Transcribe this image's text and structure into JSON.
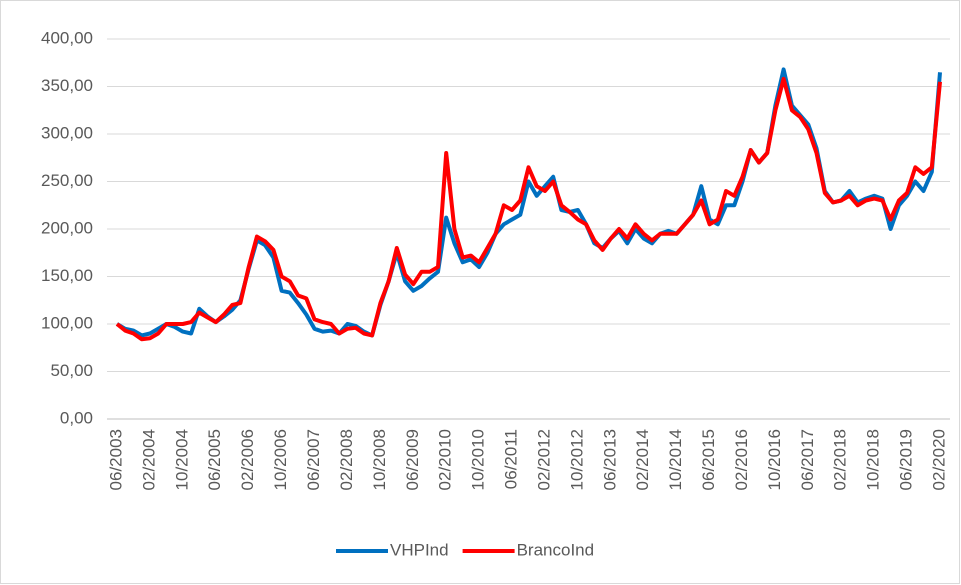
{
  "chart_data": {
    "type": "line",
    "categories": [
      "06/2003",
      null,
      null,
      null,
      "02/2004",
      null,
      null,
      null,
      "10/2004",
      null,
      null,
      null,
      "06/2005",
      null,
      null,
      null,
      "02/2006",
      null,
      null,
      null,
      "10/2006",
      null,
      null,
      null,
      "06/2007",
      null,
      null,
      null,
      "02/2008",
      null,
      null,
      null,
      "10/2008",
      null,
      null,
      null,
      "06/2009",
      null,
      null,
      null,
      "02/2010",
      null,
      null,
      null,
      "10/2010",
      null,
      null,
      null,
      "06/2011",
      null,
      null,
      null,
      "02/2012",
      null,
      null,
      null,
      "10/2012",
      null,
      null,
      null,
      "06/2013",
      null,
      null,
      null,
      "02/2014",
      null,
      null,
      null,
      "10/2014",
      null,
      null,
      null,
      "06/2015",
      null,
      null,
      null,
      "02/2016",
      null,
      null,
      null,
      "10/2016",
      null,
      null,
      null,
      "06/2017",
      null,
      null,
      null,
      "02/2018",
      null,
      null,
      null,
      "10/2018",
      null,
      null,
      null,
      "06/2019",
      null,
      null,
      null,
      "02/2020"
    ],
    "series": [
      {
        "name": "VHPInd",
        "color": "#0070c0",
        "values": [
          100,
          95,
          93,
          88,
          90,
          95,
          100,
          97,
          92,
          90,
          116,
          108,
          102,
          108,
          115,
          125,
          158,
          188,
          183,
          170,
          135,
          133,
          122,
          110,
          95,
          92,
          93,
          90,
          100,
          98,
          92,
          88,
          120,
          145,
          175,
          145,
          135,
          140,
          148,
          155,
          212,
          185,
          165,
          168,
          160,
          175,
          195,
          205,
          210,
          215,
          250,
          235,
          245,
          255,
          220,
          218,
          220,
          205,
          185,
          180,
          190,
          198,
          185,
          200,
          190,
          185,
          195,
          198,
          195,
          205,
          215,
          245,
          210,
          205,
          225,
          225,
          250,
          283,
          270,
          280,
          330,
          368,
          330,
          320,
          310,
          285,
          240,
          228,
          230,
          240,
          228,
          232,
          235,
          232,
          200,
          225,
          235,
          250,
          240,
          260,
          365
        ]
      },
      {
        "name": "BrancoInd",
        "color": "#ff0000",
        "values": [
          100,
          93,
          90,
          84,
          85,
          90,
          100,
          100,
          100,
          102,
          112,
          107,
          102,
          110,
          120,
          122,
          160,
          192,
          187,
          178,
          150,
          145,
          130,
          127,
          105,
          102,
          100,
          90,
          95,
          96,
          90,
          88,
          122,
          145,
          180,
          152,
          142,
          155,
          155,
          160,
          280,
          200,
          170,
          172,
          165,
          180,
          195,
          225,
          220,
          230,
          265,
          245,
          240,
          250,
          225,
          218,
          210,
          205,
          188,
          178,
          190,
          200,
          190,
          205,
          195,
          188,
          195,
          195,
          195,
          205,
          215,
          230,
          205,
          210,
          240,
          235,
          255,
          283,
          270,
          280,
          325,
          358,
          325,
          318,
          305,
          280,
          238,
          228,
          230,
          235,
          225,
          230,
          232,
          230,
          210,
          230,
          238,
          265,
          258,
          265,
          355
        ]
      }
    ],
    "ylim": [
      0,
      400
    ],
    "yticks": [
      {
        "value": 0,
        "label": "0,00"
      },
      {
        "value": 50,
        "label": "50,00"
      },
      {
        "value": 100,
        "label": "100,00"
      },
      {
        "value": 150,
        "label": "150,00"
      },
      {
        "value": 200,
        "label": "200,00"
      },
      {
        "value": 250,
        "label": "250,00"
      },
      {
        "value": 300,
        "label": "300,00"
      },
      {
        "value": 350,
        "label": "350,00"
      },
      {
        "value": 400,
        "label": "400,00"
      }
    ],
    "grid": true,
    "legend": "bottom"
  }
}
